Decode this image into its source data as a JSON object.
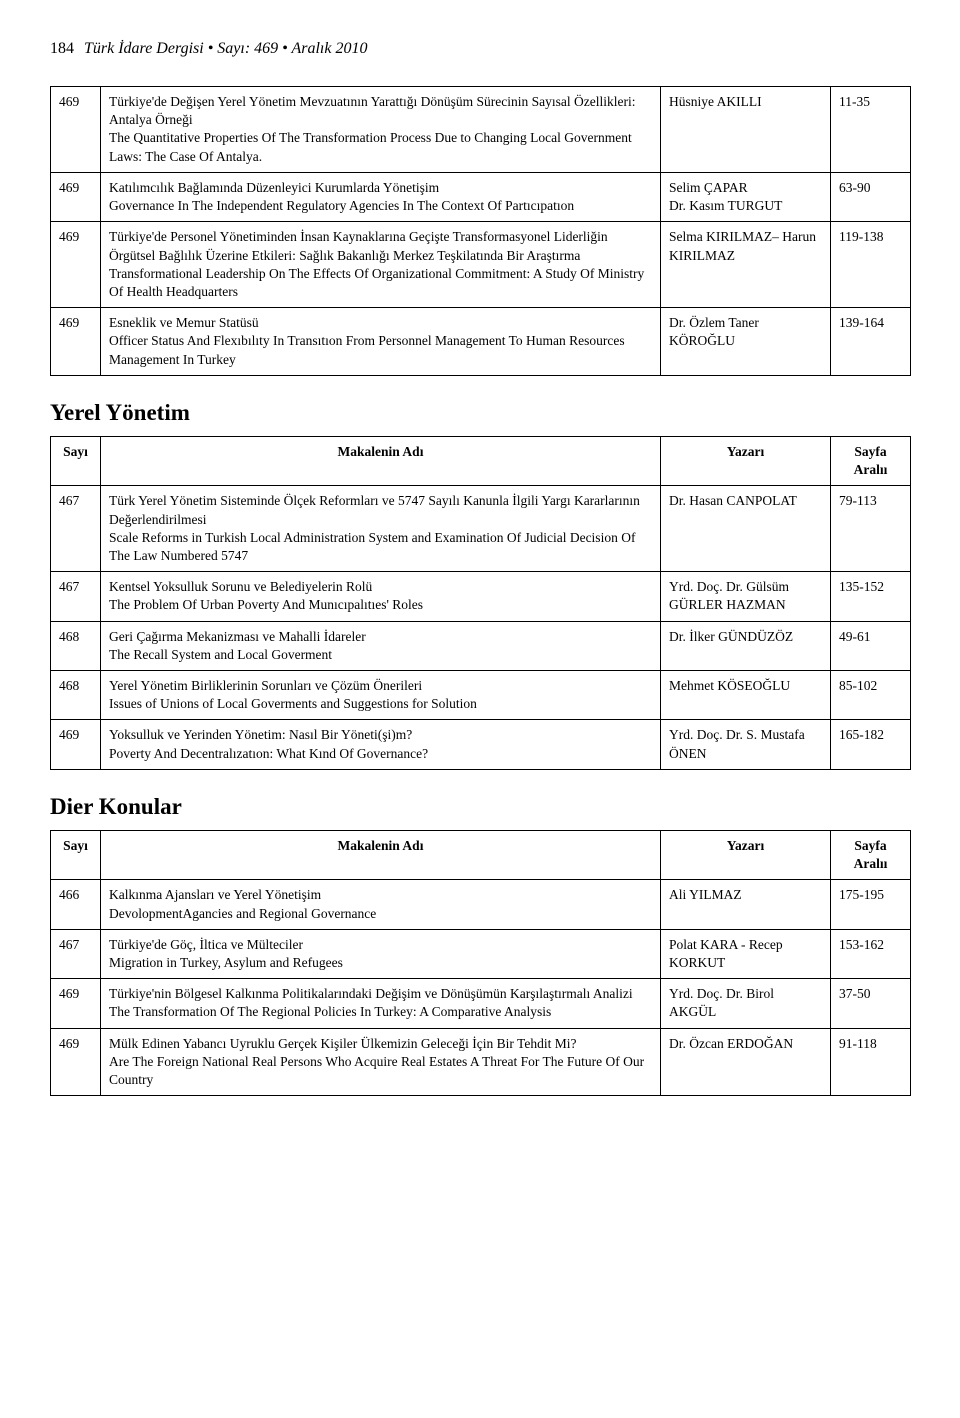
{
  "header": {
    "pageNumber": "184",
    "journalLine": "Türk İdare Dergisi • Sayı: 469 • Aralık 2010"
  },
  "table1": {
    "rows": [
      {
        "sayi": "469",
        "titleTr": "Türkiye'de Değişen Yerel Yönetim Mevzuatının Yarattığı Dönüşüm Sürecinin Sayısal Özellikleri: Antalya Örneği",
        "titleEn": "The Quantitative Properties Of The Transformation Process Due to Changing Local Government Laws: The Case Of Antalya.",
        "author": "Hüsniye AKILLI",
        "pages": "11-35"
      },
      {
        "sayi": "469",
        "titleTr": "Katılımcılık Bağlamında Düzenleyici Kurumlarda Yönetişim",
        "titleEn": "Governance In The Independent Regulatory Agencies In The Context Of Partıcıpatıon",
        "author": "Selim ÇAPAR\nDr. Kasım TURGUT",
        "pages": "63-90"
      },
      {
        "sayi": "469",
        "titleTr": "Türkiye'de Personel Yönetiminden İnsan Kaynaklarına Geçişte Transformasyonel Liderliğin Örgütsel Bağlılık Üzerine Etkileri: Sağlık Bakanlığı Merkez Teşkilatında Bir Araştırma",
        "titleEn": "Transformational Leadership On The Effects Of Organizational Commitment: A Study Of Ministry Of Health Headquarters",
        "author": "Selma KIRILMAZ– Harun KIRILMAZ",
        "pages": "119-138"
      },
      {
        "sayi": "469",
        "titleTr": "Esneklik ve Memur Statüsü",
        "titleEn": "Officer Status And Flexıbılıty In Transıtıon From Personnel Management To Human Resources Management In Turkey",
        "author": "Dr. Özlem Taner KÖROĞLU",
        "pages": "139-164"
      }
    ]
  },
  "section2": {
    "heading": "Yerel Yönetim",
    "headers": {
      "sayi": "Sayı",
      "title": "Makalenin Adı",
      "author": "Yazarı",
      "pages": "Sayfa Aralıı"
    },
    "rows": [
      {
        "sayi": "467",
        "titleTr": "Türk Yerel Yönetim Sisteminde Ölçek Reformları ve 5747 Sayılı Kanunla İlgili Yargı Kararlarının Değerlendirilmesi",
        "titleEn": "Scale Reforms in Turkish Local Administration System and Examination Of Judicial Decision Of The Law Numbered 5747",
        "author": "Dr. Hasan CANPOLAT",
        "pages": "79-113"
      },
      {
        "sayi": "467",
        "titleTr": "Kentsel Yoksulluk Sorunu ve Belediyelerin Rolü",
        "titleEn": "The Problem Of Urban Poverty And Munıcıpalıtıes' Roles",
        "author": "Yrd. Doç. Dr. Gülsüm GÜRLER HAZMAN",
        "pages": "135-152"
      },
      {
        "sayi": "468",
        "titleTr": "Geri Çağırma Mekanizması ve Mahalli İdareler",
        "titleEn": "The Recall System and Local Goverment",
        "author": "Dr. İlker GÜNDÜZÖZ",
        "pages": "49-61"
      },
      {
        "sayi": "468",
        "titleTr": "Yerel Yönetim Birliklerinin Sorunları ve Çözüm Önerileri",
        "titleEn": "Issues of Unions of Local Goverments and Suggestions for Solution",
        "author": "Mehmet KÖSEOĞLU",
        "pages": "85-102"
      },
      {
        "sayi": "469",
        "titleTr": "Yoksulluk ve Yerinden Yönetim: Nasıl Bir Yöneti(şi)m?",
        "titleEn": "Poverty And Decentralızatıon: What Kınd Of Governance?",
        "author": "Yrd. Doç. Dr. S. Mustafa ÖNEN",
        "pages": "165-182"
      }
    ]
  },
  "section3": {
    "heading": "Dier Konular",
    "headers": {
      "sayi": "Sayı",
      "title": "Makalenin Adı",
      "author": "Yazarı",
      "pages": "Sayfa Aralıı"
    },
    "rows": [
      {
        "sayi": "466",
        "titleTr": "Kalkınma Ajansları ve Yerel Yönetişim",
        "titleEn": "DevolopmentAgancies and Regional Governance",
        "author": "Ali YILMAZ",
        "pages": "175-195"
      },
      {
        "sayi": "467",
        "titleTr": "Türkiye'de Göç, İltica ve Mülteciler",
        "titleEn": "Migration in Turkey, Asylum and Refugees",
        "author": "Polat KARA - Recep KORKUT",
        "pages": "153-162"
      },
      {
        "sayi": "469",
        "titleTr": "Türkiye'nin Bölgesel Kalkınma Politikalarındaki Değişim ve Dönüşümün Karşılaştırmalı Analizi",
        "titleEn": "The Transformation Of The Regional Policies In Turkey: A Comparative Analysis",
        "author": "Yrd. Doç. Dr. Birol AKGÜL",
        "pages": "37-50"
      },
      {
        "sayi": "469",
        "titleTr": "Mülk Edinen Yabancı Uyruklu Gerçek Kişiler Ülkemizin Geleceği İçin Bir Tehdit Mi?",
        "titleEn": "Are The Foreign National Real Persons Who Acquire Real Estates A Threat For The Future Of Our Country",
        "author": "Dr. Özcan ERDOĞAN",
        "pages": "91-118"
      }
    ]
  }
}
